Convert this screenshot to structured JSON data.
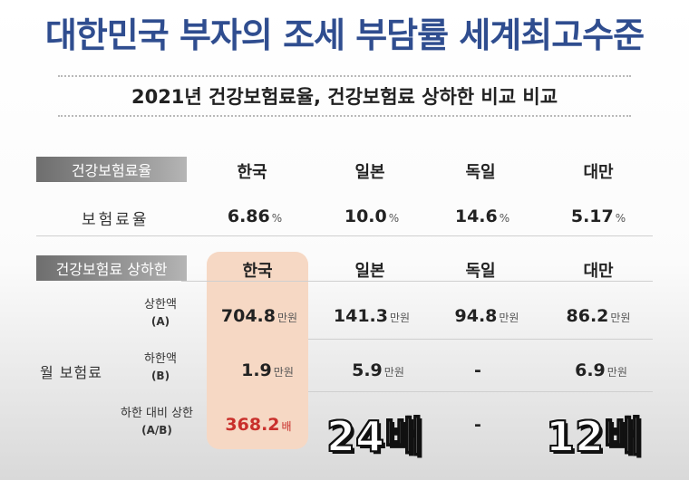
{
  "title": "대한민국 부자의 조세 부담률 세계최고수준",
  "subtitle": "2021년 건강보험료율, 건강보험료 상하한 비교 비교",
  "section1": {
    "label": "건강보험료율",
    "countries": [
      "한국",
      "일본",
      "독일",
      "대만"
    ],
    "row_label": "보험료율",
    "values": [
      "6.86",
      "10.0",
      "14.6",
      "5.17"
    ],
    "unit": "%"
  },
  "section2": {
    "label": "건강보험료 상하한",
    "countries": [
      "한국",
      "일본",
      "독일",
      "대만"
    ],
    "group_label": "월 보험료",
    "unit": "만원",
    "rows": [
      {
        "name": "상한액",
        "code": "(A)",
        "values": [
          "704.8",
          "141.3",
          "94.8",
          "86.2"
        ]
      },
      {
        "name": "하한액",
        "code": "(B)",
        "values": [
          "1.9",
          "5.9",
          "-",
          "6.9"
        ]
      },
      {
        "name": "하한 대비 상한",
        "code": "(A/B)",
        "values": [
          "368.2",
          "",
          "-",
          ""
        ],
        "unit_first": "배"
      }
    ]
  },
  "overlays": {
    "japan_ratio": "24배",
    "taiwan_ratio": "12배"
  },
  "colors": {
    "title": "#2f4d8f",
    "highlight": "#f6d8c4",
    "accent_red": "#c9302c"
  }
}
